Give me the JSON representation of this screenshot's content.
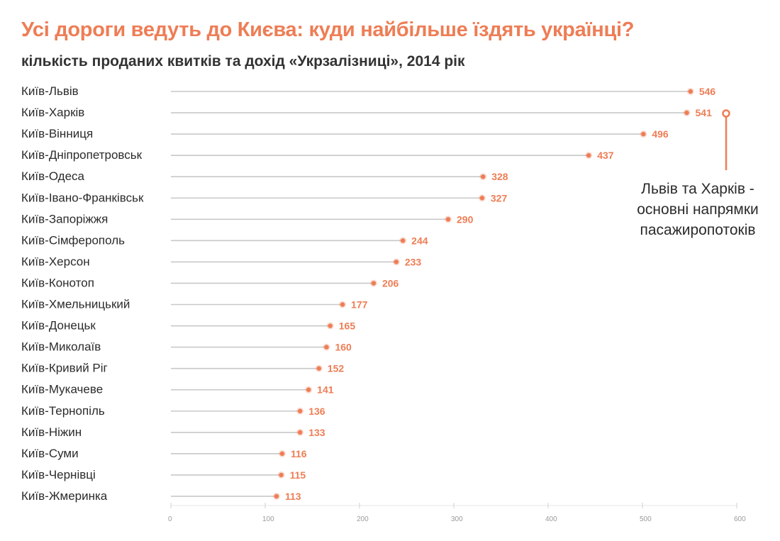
{
  "title": "Усі дороги ведуть до Києва: куди найбільше їздять українці?",
  "subtitle": "кількість проданих квитків та дохід «Укрзалізниці», 2014 рік",
  "annotation": {
    "lines": [
      "Львів та Харків -",
      "основні напрямки",
      "пасажиропотоків"
    ]
  },
  "colors": {
    "accent": "#ee7d55",
    "line": "#c8c8c8",
    "text": "#2b2b2b",
    "tick": "#9a9a9a"
  },
  "chart_data": {
    "type": "lollipop",
    "categories": [
      "Київ-Львів",
      "Київ-Харків",
      "Київ-Вінниця",
      "Київ-Дніпропетровськ",
      "Київ-Одеса",
      "Київ-Івано-Франківськ",
      "Київ-Запоріжжя",
      "Київ-Сімферополь",
      "Київ-Херсон",
      "Київ-Конотоп",
      "Київ-Хмельницький",
      "Київ-Донецьк",
      "Київ-Миколаїв",
      "Київ-Кривий Ріг",
      "Київ-Мукачеве",
      "Київ-Тернопіль",
      "Київ-Ніжин",
      "Київ-Суми",
      "Київ-Чернівці",
      "Київ-Жмеринка"
    ],
    "values": [
      546,
      541,
      496,
      437,
      328,
      327,
      290,
      244,
      233,
      206,
      177,
      165,
      160,
      152,
      141,
      136,
      133,
      116,
      115,
      113
    ],
    "positions": [
      551,
      547,
      501,
      443,
      331,
      330,
      294,
      246,
      239,
      215,
      182,
      169,
      165,
      157,
      146,
      137,
      137,
      118,
      117,
      112
    ],
    "xlim": [
      0,
      600
    ],
    "xticks": [
      0,
      100,
      200,
      300,
      400,
      500,
      600
    ],
    "xtick_labels": [
      "0",
      "100",
      "200",
      "300",
      "400",
      "500",
      "600"
    ],
    "grid": false,
    "legend": "none"
  }
}
